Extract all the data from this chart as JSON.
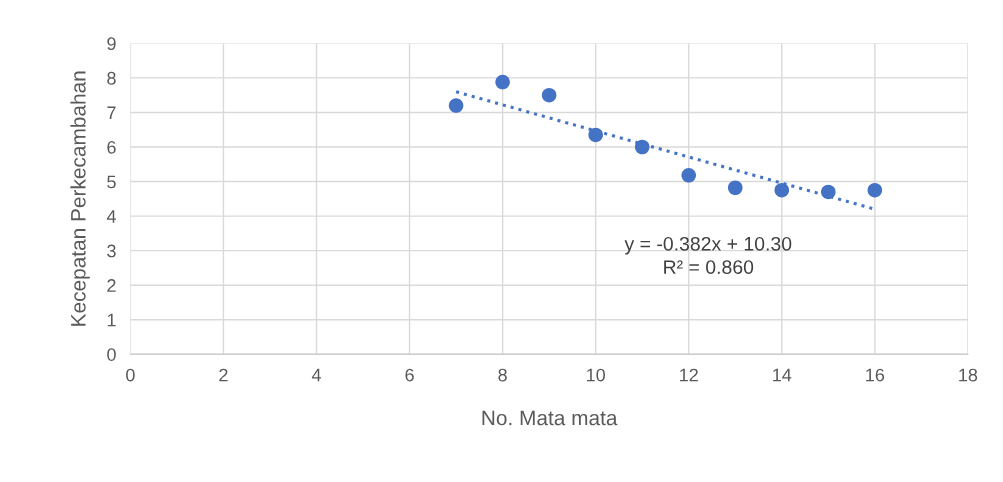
{
  "chart_data": {
    "type": "scatter",
    "xlabel": "No. Mata mata",
    "ylabel": "Kecepatan Perkecambahan",
    "xlim": [
      0,
      18
    ],
    "xticks": [
      0,
      2,
      4,
      6,
      8,
      10,
      12,
      14,
      16,
      18
    ],
    "ylim": [
      0,
      9
    ],
    "yticks": [
      0,
      1,
      2,
      3,
      4,
      5,
      6,
      7,
      8,
      9
    ],
    "grid": true,
    "series": [
      {
        "color": "#4472c4",
        "x": [
          7,
          8,
          9,
          10,
          11,
          12,
          13,
          14,
          15,
          16
        ],
        "values": [
          7.2,
          7.88,
          7.5,
          6.35,
          6.0,
          5.18,
          4.82,
          4.75,
          4.7,
          4.75
        ]
      },
      {
        "type": "line",
        "color": "#4472c4",
        "line_style": "dotted",
        "marker": "none",
        "x": [
          7,
          16
        ],
        "values": [
          7.6,
          4.2
        ]
      }
    ],
    "marker": "circle",
    "annotations": [
      "y = -0.382x + 10.30",
      "R² = 0.860"
    ]
  }
}
